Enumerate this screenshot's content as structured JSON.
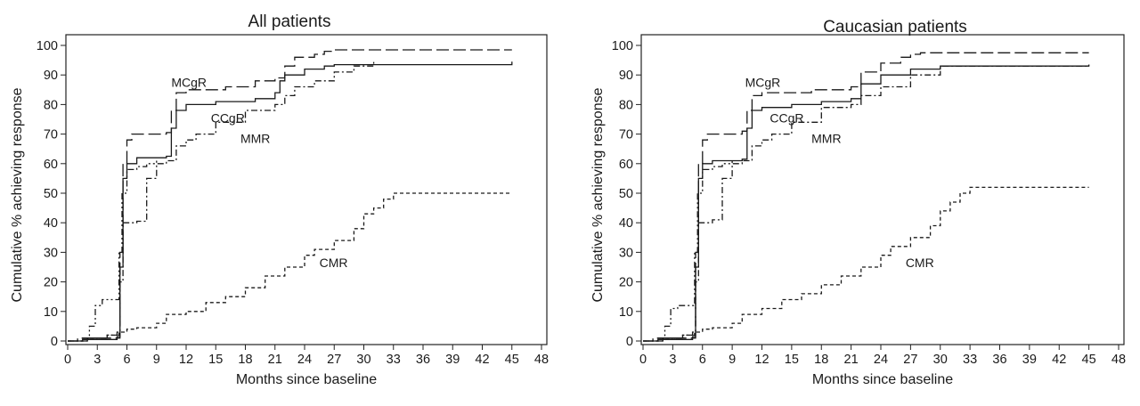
{
  "chart_data": [
    {
      "type": "line",
      "title": "All patients",
      "xlabel": "Months since baseline",
      "ylabel": "Cumulative % achieving response",
      "xlim": [
        0,
        48
      ],
      "ylim": [
        0,
        100
      ],
      "xticks": [
        "0",
        "3",
        "6",
        "9",
        "12",
        "15",
        "18",
        "21",
        "24",
        "27",
        "30",
        "33",
        "36",
        "39",
        "42",
        "45",
        "48"
      ],
      "yticks": [
        "0",
        "10",
        "20",
        "30",
        "40",
        "50",
        "60",
        "70",
        "80",
        "90",
        "100"
      ],
      "grid": false,
      "series": [
        {
          "name": "MCgR",
          "style": "long-dash",
          "label_at": [
            10.5,
            86
          ],
          "points": [
            [
              0,
              0
            ],
            [
              1,
              1
            ],
            [
              2.5,
              1
            ],
            [
              5,
              1.5
            ],
            [
              5.3,
              30
            ],
            [
              5.6,
              60
            ],
            [
              6,
              68
            ],
            [
              6.5,
              70
            ],
            [
              10,
              70.5
            ],
            [
              10.5,
              78
            ],
            [
              11,
              84
            ],
            [
              12,
              85
            ],
            [
              15,
              85
            ],
            [
              16,
              86
            ],
            [
              19,
              88
            ],
            [
              21,
              89
            ],
            [
              22,
              93
            ],
            [
              23,
              96
            ],
            [
              25,
              97
            ],
            [
              26,
              98
            ],
            [
              27,
              98.5
            ],
            [
              29,
              98.5
            ],
            [
              45,
              98.5
            ]
          ]
        },
        {
          "name": "CCgR",
          "style": "solid",
          "label_at": [
            14.5,
            74
          ],
          "points": [
            [
              0,
              0
            ],
            [
              1.5,
              0.5
            ],
            [
              5,
              1
            ],
            [
              5.3,
              25
            ],
            [
              5.6,
              55
            ],
            [
              6,
              60
            ],
            [
              7,
              62
            ],
            [
              10,
              62.5
            ],
            [
              10.5,
              72
            ],
            [
              11,
              78
            ],
            [
              12,
              80
            ],
            [
              15,
              81
            ],
            [
              19,
              82
            ],
            [
              21,
              84
            ],
            [
              21.5,
              88
            ],
            [
              22,
              90
            ],
            [
              24,
              92
            ],
            [
              26,
              93
            ],
            [
              27,
              93.5
            ],
            [
              45,
              94.5
            ]
          ]
        },
        {
          "name": "MMR",
          "style": "dash-dot",
          "label_at": [
            17.5,
            67
          ],
          "points": [
            [
              0,
              0
            ],
            [
              1,
              0
            ],
            [
              2,
              1
            ],
            [
              4,
              2
            ],
            [
              5,
              3
            ],
            [
              5.3,
              20
            ],
            [
              5.6,
              40
            ],
            [
              6,
              40
            ],
            [
              7,
              40.5
            ],
            [
              8,
              55
            ],
            [
              9,
              60
            ],
            [
              10,
              61
            ],
            [
              11,
              66
            ],
            [
              12,
              68
            ],
            [
              13,
              70
            ],
            [
              15,
              74
            ],
            [
              18,
              78
            ],
            [
              21,
              80
            ],
            [
              22,
              83
            ],
            [
              23,
              86
            ],
            [
              25,
              88
            ],
            [
              27,
              91
            ],
            [
              29,
              93
            ],
            [
              31,
              94.5
            ]
          ]
        },
        {
          "name": "",
          "style": "dash-dot-dot",
          "points": [
            [
              0,
              0
            ],
            [
              1.5,
              1
            ],
            [
              2.2,
              5
            ],
            [
              2.8,
              12
            ],
            [
              3.5,
              14
            ],
            [
              5,
              14
            ],
            [
              5.2,
              30
            ],
            [
              5.5,
              50
            ],
            [
              6,
              58
            ],
            [
              7,
              59
            ],
            [
              8,
              60
            ],
            [
              9,
              61
            ]
          ]
        },
        {
          "name": "CMR",
          "style": "short-dash",
          "label_at": [
            25.5,
            25
          ],
          "points": [
            [
              0,
              0
            ],
            [
              2,
              1
            ],
            [
              4,
              2
            ],
            [
              5.2,
              3
            ],
            [
              6,
              4
            ],
            [
              7,
              4.5
            ],
            [
              9,
              6
            ],
            [
              10,
              9
            ],
            [
              12,
              10
            ],
            [
              14,
              13
            ],
            [
              16,
              15
            ],
            [
              18,
              18
            ],
            [
              20,
              22
            ],
            [
              22,
              25
            ],
            [
              24,
              29
            ],
            [
              25,
              31
            ],
            [
              27,
              34
            ],
            [
              29,
              38
            ],
            [
              30,
              43
            ],
            [
              31,
              45
            ],
            [
              32,
              48
            ],
            [
              33,
              50
            ],
            [
              45,
              50
            ]
          ]
        }
      ]
    },
    {
      "type": "line",
      "title": "Caucasian patients",
      "xlabel": "Months since baseline",
      "ylabel": "Cumulative % achieving response",
      "xlim": [
        0,
        48
      ],
      "ylim": [
        0,
        100
      ],
      "xticks": [
        "0",
        "3",
        "6",
        "9",
        "12",
        "15",
        "18",
        "21",
        "24",
        "27",
        "30",
        "33",
        "36",
        "39",
        "42",
        "45",
        "48"
      ],
      "yticks": [
        "0",
        "10",
        "20",
        "30",
        "40",
        "50",
        "60",
        "70",
        "80",
        "90",
        "100"
      ],
      "grid": false,
      "series": [
        {
          "name": "MCgR",
          "style": "long-dash",
          "label_at": [
            10.3,
            86
          ],
          "points": [
            [
              0,
              0
            ],
            [
              1,
              1
            ],
            [
              2.5,
              1
            ],
            [
              5,
              1.5
            ],
            [
              5.3,
              30
            ],
            [
              5.6,
              60
            ],
            [
              6,
              68
            ],
            [
              6.5,
              70
            ],
            [
              9,
              70
            ],
            [
              10,
              71
            ],
            [
              10.5,
              78
            ],
            [
              11,
              83
            ],
            [
              12,
              84
            ],
            [
              15,
              84
            ],
            [
              17,
              85
            ],
            [
              21,
              86
            ],
            [
              22,
              91
            ],
            [
              24,
              94
            ],
            [
              26,
              96
            ],
            [
              27,
              97
            ],
            [
              28,
              97.5
            ],
            [
              45,
              97.5
            ]
          ]
        },
        {
          "name": "CCgR",
          "style": "solid",
          "label_at": [
            12.8,
            74
          ],
          "points": [
            [
              0,
              0
            ],
            [
              1.5,
              0.5
            ],
            [
              5,
              1
            ],
            [
              5.3,
              25
            ],
            [
              5.6,
              55
            ],
            [
              6,
              60
            ],
            [
              7,
              61
            ],
            [
              10,
              61.5
            ],
            [
              10.5,
              72
            ],
            [
              11,
              78
            ],
            [
              12,
              79
            ],
            [
              15,
              80
            ],
            [
              18,
              81
            ],
            [
              21,
              82
            ],
            [
              22,
              87
            ],
            [
              24,
              90
            ],
            [
              27,
              92
            ],
            [
              30,
              93
            ],
            [
              45,
              93.5
            ]
          ]
        },
        {
          "name": "MMR",
          "style": "dash-dot",
          "label_at": [
            17,
            67
          ],
          "points": [
            [
              0,
              0
            ],
            [
              1,
              0
            ],
            [
              2,
              1
            ],
            [
              4,
              2
            ],
            [
              5,
              3
            ],
            [
              5.3,
              20
            ],
            [
              5.6,
              40
            ],
            [
              6,
              40
            ],
            [
              7,
              41
            ],
            [
              8,
              55
            ],
            [
              9,
              60
            ],
            [
              10,
              61
            ],
            [
              11,
              66
            ],
            [
              12,
              68
            ],
            [
              13,
              70
            ],
            [
              15,
              74
            ],
            [
              18,
              79
            ],
            [
              21,
              80
            ],
            [
              22,
              83
            ],
            [
              24,
              86
            ],
            [
              27,
              90
            ],
            [
              30,
              93
            ],
            [
              45,
              93.5
            ]
          ]
        },
        {
          "name": "",
          "style": "dash-dot-dot",
          "points": [
            [
              0,
              0
            ],
            [
              1.5,
              1
            ],
            [
              2.2,
              5
            ],
            [
              2.8,
              11
            ],
            [
              3.5,
              12
            ],
            [
              5,
              12
            ],
            [
              5.2,
              30
            ],
            [
              5.5,
              50
            ],
            [
              6,
              58
            ],
            [
              7,
              59
            ],
            [
              8,
              60
            ],
            [
              9,
              61
            ]
          ]
        },
        {
          "name": "CMR",
          "style": "short-dash",
          "label_at": [
            26.5,
            25
          ],
          "points": [
            [
              0,
              0
            ],
            [
              2,
              1
            ],
            [
              4,
              2
            ],
            [
              5.2,
              3
            ],
            [
              6,
              4
            ],
            [
              7,
              4.5
            ],
            [
              9,
              6
            ],
            [
              10,
              9
            ],
            [
              12,
              11
            ],
            [
              14,
              14
            ],
            [
              16,
              16
            ],
            [
              18,
              19
            ],
            [
              20,
              22
            ],
            [
              22,
              25
            ],
            [
              24,
              29
            ],
            [
              25,
              32
            ],
            [
              27,
              35
            ],
            [
              29,
              39
            ],
            [
              30,
              44
            ],
            [
              31,
              47
            ],
            [
              32,
              50
            ],
            [
              33,
              52
            ],
            [
              45,
              52
            ]
          ]
        }
      ]
    }
  ]
}
